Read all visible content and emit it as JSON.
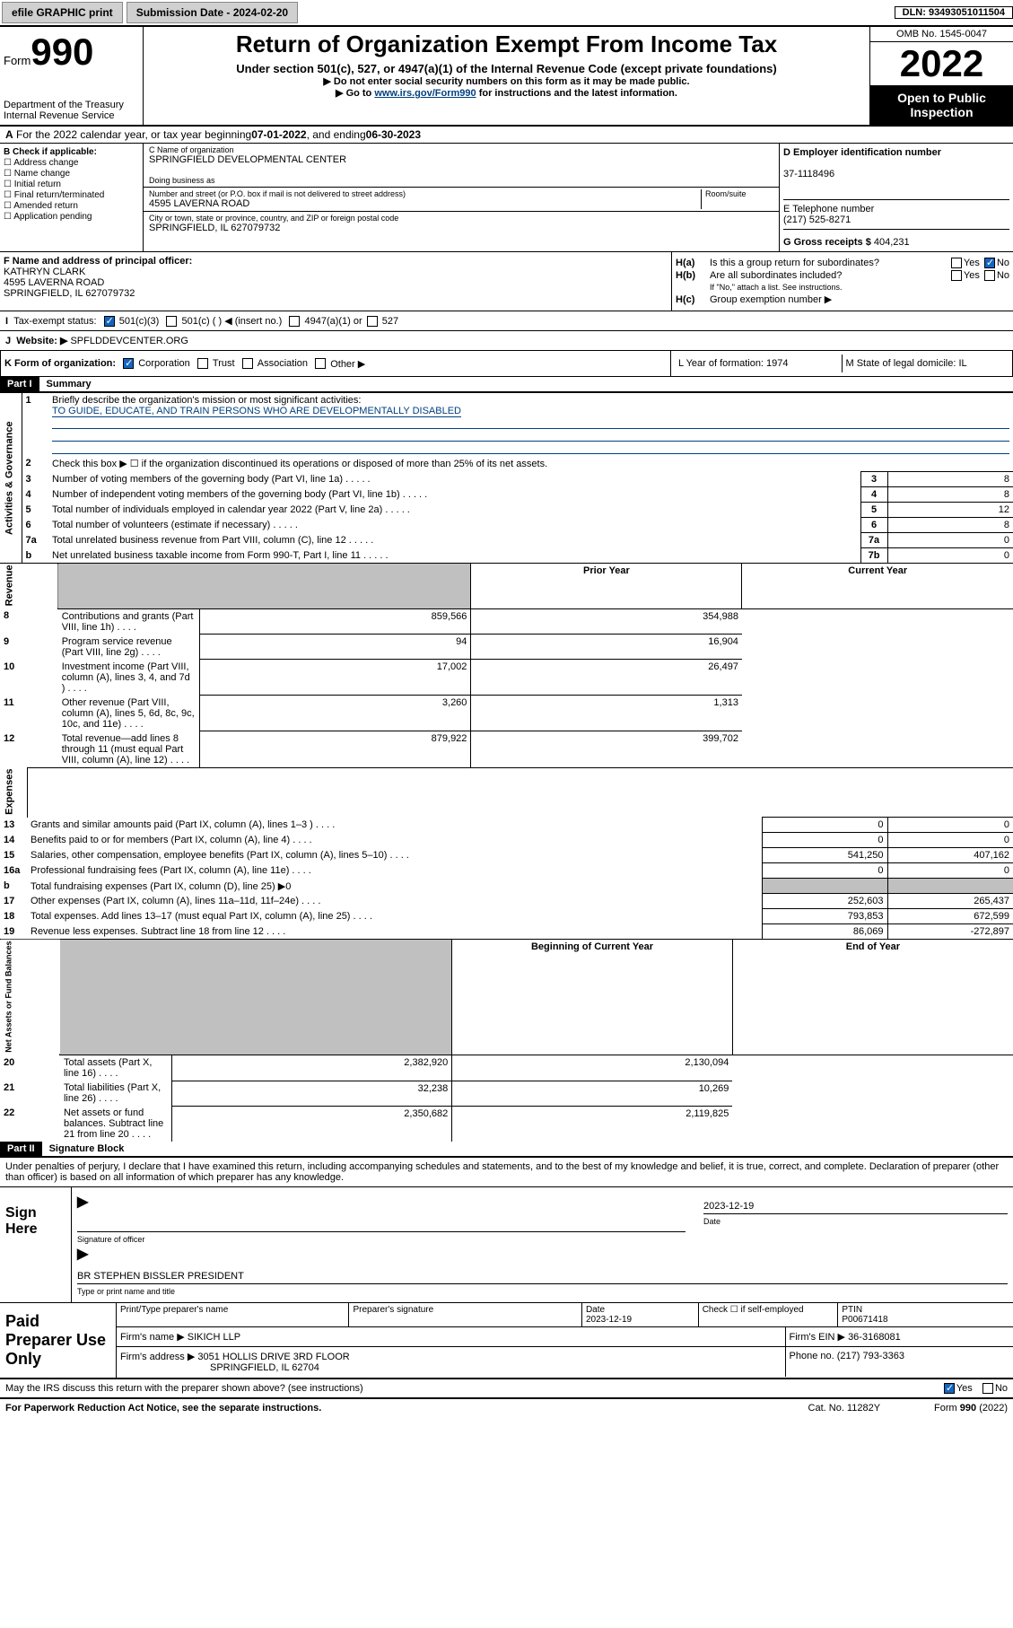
{
  "topbar": {
    "efile": "efile GRAPHIC print",
    "subdate_label": "Submission Date - 2024-02-20",
    "dln": "DLN: 93493051011504"
  },
  "header": {
    "form_label": "Form",
    "form_num": "990",
    "dept": "Department of the Treasury",
    "irs": "Internal Revenue Service",
    "title": "Return of Organization Exempt From Income Tax",
    "subtitle": "Under section 501(c), 527, or 4947(a)(1) of the Internal Revenue Code (except private foundations)",
    "ssn_warn": "▶ Do not enter social security numbers on this form as it may be made public.",
    "goto": "▶ Go to ",
    "goto_link": "www.irs.gov/Form990",
    "goto_rest": " for instructions and the latest information.",
    "omb": "OMB No. 1545-0047",
    "year": "2022",
    "open": "Open to Public Inspection"
  },
  "row_a": {
    "text_pre": "For the 2022 calendar year, or tax year beginning ",
    "begin": "07-01-2022",
    "mid": " , and ending ",
    "end": "06-30-2023"
  },
  "b": {
    "hdr": "B Check if applicable:",
    "items": [
      "Address change",
      "Name change",
      "Initial return",
      "Final return/terminated",
      "Amended return",
      "Application pending"
    ]
  },
  "c": {
    "name_lbl": "C Name of organization",
    "name": "SPRINGFIELD DEVELOPMENTAL CENTER",
    "dba_lbl": "Doing business as",
    "addr_lbl": "Number and street (or P.O. box if mail is not delivered to street address)",
    "room_lbl": "Room/suite",
    "addr": "4595 LAVERNA ROAD",
    "city_lbl": "City or town, state or province, country, and ZIP or foreign postal code",
    "city": "SPRINGFIELD, IL  627079732"
  },
  "d": {
    "ein_lbl": "D Employer identification number",
    "ein": "37-1118496",
    "tel_lbl": "E Telephone number",
    "tel": "(217) 525-8271",
    "gross_lbl": "G Gross receipts $ ",
    "gross": "404,231"
  },
  "f": {
    "lbl": "F Name and address of principal officer:",
    "name": "KATHRYN CLARK",
    "addr1": "4595 LAVERNA ROAD",
    "addr2": "SPRINGFIELD, IL  627079732"
  },
  "h": {
    "ha": "Is this a group return for subordinates?",
    "hb": "Are all subordinates included?",
    "hb_note": "If \"No,\" attach a list. See instructions.",
    "hc": "Group exemption number ▶"
  },
  "i": {
    "lbl": "Tax-exempt status:",
    "o1": "501(c)(3)",
    "o2": "501(c) (   ) ◀ (insert no.)",
    "o3": "4947(a)(1) or",
    "o4": "527"
  },
  "j": {
    "lbl": "Website: ▶",
    "val": "SPFLDDEVCENTER.ORG"
  },
  "k": {
    "lbl": "K Form of organization:",
    "opts": [
      "Corporation",
      "Trust",
      "Association",
      "Other ▶"
    ]
  },
  "lm": {
    "l": "L Year of formation: 1974",
    "m": "M State of legal domicile: IL"
  },
  "part1": {
    "hdr": "Part I",
    "title": "Summary",
    "q1": "Briefly describe the organization's mission or most significant activities:",
    "mission": "TO GUIDE, EDUCATE, AND TRAIN PERSONS WHO ARE DEVELOPMENTALLY DISABLED",
    "q2": "Check this box ▶ ☐  if the organization discontinued its operations or disposed of more than 25% of its net assets.",
    "side_labels": [
      "Activities & Governance",
      "Revenue",
      "Expenses",
      "Net Assets or Fund Balances"
    ],
    "col_prior": "Prior Year",
    "col_curr": "Current Year",
    "col_beg": "Beginning of Current Year",
    "col_end": "End of Year",
    "gov_rows": [
      {
        "n": "3",
        "t": "Number of voting members of the governing body (Part VI, line 1a)",
        "k": "3",
        "v": "8"
      },
      {
        "n": "4",
        "t": "Number of independent voting members of the governing body (Part VI, line 1b)",
        "k": "4",
        "v": "8"
      },
      {
        "n": "5",
        "t": "Total number of individuals employed in calendar year 2022 (Part V, line 2a)",
        "k": "5",
        "v": "12"
      },
      {
        "n": "6",
        "t": "Total number of volunteers (estimate if necessary)",
        "k": "6",
        "v": "8"
      },
      {
        "n": "7a",
        "t": "Total unrelated business revenue from Part VIII, column (C), line 12",
        "k": "7a",
        "v": "0"
      },
      {
        "n": "b",
        "t": "Net unrelated business taxable income from Form 990-T, Part I, line 11",
        "k": "7b",
        "v": "0"
      }
    ],
    "rev_rows": [
      {
        "n": "8",
        "t": "Contributions and grants (Part VIII, line 1h)",
        "p": "859,566",
        "c": "354,988"
      },
      {
        "n": "9",
        "t": "Program service revenue (Part VIII, line 2g)",
        "p": "94",
        "c": "16,904"
      },
      {
        "n": "10",
        "t": "Investment income (Part VIII, column (A), lines 3, 4, and 7d )",
        "p": "17,002",
        "c": "26,497"
      },
      {
        "n": "11",
        "t": "Other revenue (Part VIII, column (A), lines 5, 6d, 8c, 9c, 10c, and 11e)",
        "p": "3,260",
        "c": "1,313"
      },
      {
        "n": "12",
        "t": "Total revenue—add lines 8 through 11 (must equal Part VIII, column (A), line 12)",
        "p": "879,922",
        "c": "399,702"
      }
    ],
    "exp_rows": [
      {
        "n": "13",
        "t": "Grants and similar amounts paid (Part IX, column (A), lines 1–3 )",
        "p": "0",
        "c": "0"
      },
      {
        "n": "14",
        "t": "Benefits paid to or for members (Part IX, column (A), line 4)",
        "p": "0",
        "c": "0"
      },
      {
        "n": "15",
        "t": "Salaries, other compensation, employee benefits (Part IX, column (A), lines 5–10)",
        "p": "541,250",
        "c": "407,162"
      },
      {
        "n": "16a",
        "t": "Professional fundraising fees (Part IX, column (A), line 11e)",
        "p": "0",
        "c": "0"
      },
      {
        "n": "b",
        "t": "Total fundraising expenses (Part IX, column (D), line 25) ▶0",
        "p": "",
        "c": "",
        "grey": true
      },
      {
        "n": "17",
        "t": "Other expenses (Part IX, column (A), lines 11a–11d, 11f–24e)",
        "p": "252,603",
        "c": "265,437"
      },
      {
        "n": "18",
        "t": "Total expenses. Add lines 13–17 (must equal Part IX, column (A), line 25)",
        "p": "793,853",
        "c": "672,599"
      },
      {
        "n": "19",
        "t": "Revenue less expenses. Subtract line 18 from line 12",
        "p": "86,069",
        "c": "-272,897"
      }
    ],
    "net_rows": [
      {
        "n": "20",
        "t": "Total assets (Part X, line 16)",
        "p": "2,382,920",
        "c": "2,130,094"
      },
      {
        "n": "21",
        "t": "Total liabilities (Part X, line 26)",
        "p": "32,238",
        "c": "10,269"
      },
      {
        "n": "22",
        "t": "Net assets or fund balances. Subtract line 21 from line 20",
        "p": "2,350,682",
        "c": "2,119,825"
      }
    ]
  },
  "part2": {
    "hdr": "Part II",
    "title": "Signature Block",
    "decl": "Under penalties of perjury, I declare that I have examined this return, including accompanying schedules and statements, and to the best of my knowledge and belief, it is true, correct, and complete. Declaration of preparer (other than officer) is based on all information of which preparer has any knowledge.",
    "sign_here": "Sign Here",
    "sig_off": "Signature of officer",
    "sig_date": "2023-12-19",
    "date_lbl": "Date",
    "off_name": "BR STEPHEN BISSLER PRESIDENT",
    "off_name_lbl": "Type or print name and title"
  },
  "prep": {
    "left": "Paid Preparer Use Only",
    "h1": "Print/Type preparer's name",
    "h2": "Preparer's signature",
    "h3": "Date",
    "date": "2023-12-19",
    "h4": "Check ☐ if self-employed",
    "h5": "PTIN",
    "ptin": "P00671418",
    "firm_lbl": "Firm's name    ▶",
    "firm": "SIKICH LLP",
    "ein_lbl": "Firm's EIN ▶",
    "ein": "36-3168081",
    "addr_lbl": "Firm's address ▶",
    "addr1": "3051 HOLLIS DRIVE 3RD FLOOR",
    "addr2": "SPRINGFIELD, IL  62704",
    "phone_lbl": "Phone no.",
    "phone": "(217) 793-3363"
  },
  "footer": {
    "q": "May the IRS discuss this return with the preparer shown above? (see instructions)",
    "yes": "Yes",
    "no": "No",
    "pra": "For Paperwork Reduction Act Notice, see the separate instructions.",
    "cat": "Cat. No. 11282Y",
    "form": "Form 990 (2022)"
  }
}
